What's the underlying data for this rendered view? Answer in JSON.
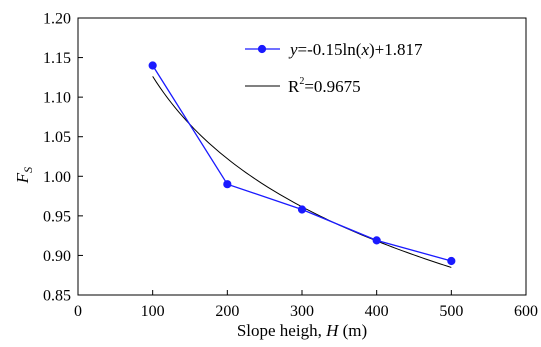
{
  "chart_data": {
    "type": "line",
    "xlabel_prefix": "Slope heigh, ",
    "xlabel_var": "H",
    "xlabel_unit": " (m)",
    "ylabel_main": "F",
    "ylabel_sub": "S",
    "xlim": [
      0,
      600
    ],
    "ylim": [
      0.85,
      1.2
    ],
    "x_ticks": [
      "0",
      "100",
      "200",
      "300",
      "400",
      "500",
      "600"
    ],
    "y_ticks": [
      "0.85",
      "0.90",
      "0.95",
      "1.00",
      "1.05",
      "1.10",
      "1.15",
      "1.20"
    ],
    "grid": false,
    "legend_position": "top-right",
    "series": [
      {
        "kind": "data",
        "x": [
          100,
          200,
          300,
          400,
          500
        ],
        "y": [
          1.14,
          0.99,
          0.958,
          0.919,
          0.893
        ],
        "color": "#1a1aff",
        "marker": "circle"
      },
      {
        "kind": "fit",
        "function": "log",
        "a": -0.15,
        "b": 1.817,
        "x_range": [
          100,
          500
        ],
        "color": "#000000"
      }
    ],
    "legend": {
      "entry1": {
        "var": "y",
        "text": "=-0.15ln(",
        "var2": "x",
        "text2": ")+1.817"
      },
      "entry2": {
        "r": "R",
        "exp": "2",
        "text": "=0.9675"
      }
    }
  }
}
